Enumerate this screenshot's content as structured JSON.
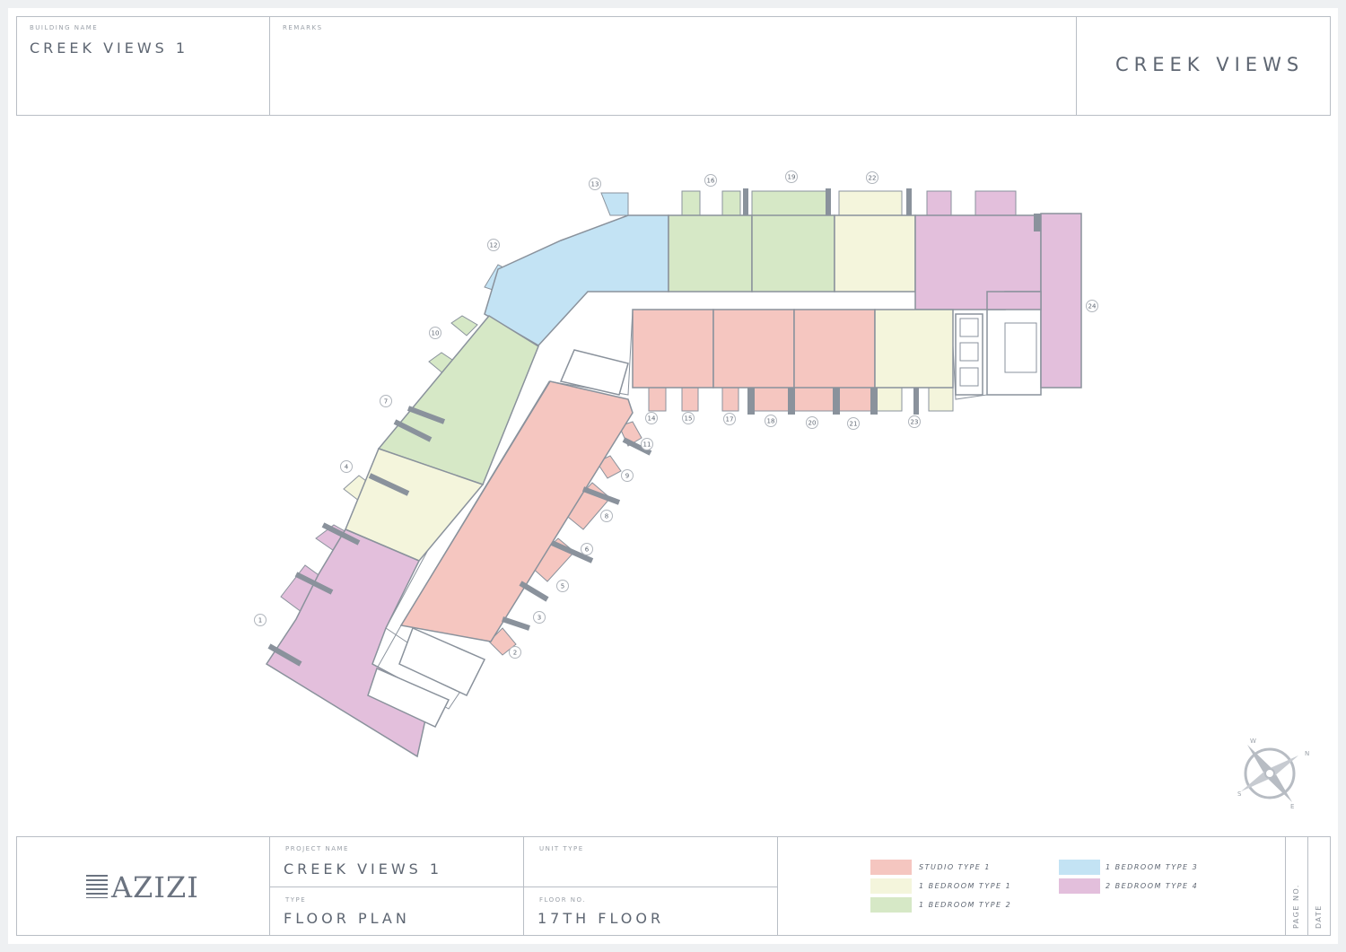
{
  "header": {
    "building_name_label": "BUILDING NAME",
    "building_name": "CREEK VIEWS 1",
    "remarks_label": "REMARKS",
    "remarks": "",
    "brand_title": "CREEK VIEWS"
  },
  "footer": {
    "logo_text": "AZIZI",
    "project_name_label": "PROJECT NAME",
    "project_name": "CREEK VIEWS 1",
    "unit_type_label": "UNIT TYPE",
    "unit_type": "",
    "type_label": "TYPE",
    "type": "FLOOR PLAN",
    "floor_no_label": "FLOOR NO.",
    "floor_no": "17TH FLOOR",
    "page_no_label": "PAGE NO.",
    "date_label": "DATE"
  },
  "legend": [
    {
      "key": "studio1",
      "label": "STUDIO TYPE 1",
      "color": "#f5c6c0"
    },
    {
      "key": "br1",
      "label": "1 BEDROOM TYPE 1",
      "color": "#f4f5dc"
    },
    {
      "key": "br2",
      "label": "1 BEDROOM TYPE 2",
      "color": "#d6e8c6"
    },
    {
      "key": "br3",
      "label": "1 BEDROOM TYPE 3",
      "color": "#c3e3f4"
    },
    {
      "key": "br4",
      "label": "2 BEDROOM TYPE 4",
      "color": "#e3bfdc"
    }
  ],
  "compass": {
    "n": "N",
    "e": "E",
    "s": "S",
    "w": "W",
    "icon": "compass-rose-icon"
  },
  "units": [
    {
      "number": "1",
      "type": "br4"
    },
    {
      "number": "2",
      "type": "studio1"
    },
    {
      "number": "3",
      "type": "studio1"
    },
    {
      "number": "4",
      "type": "br1"
    },
    {
      "number": "5",
      "type": "studio1"
    },
    {
      "number": "6",
      "type": "studio1"
    },
    {
      "number": "7",
      "type": "br2"
    },
    {
      "number": "8",
      "type": "studio1"
    },
    {
      "number": "9",
      "type": "studio1"
    },
    {
      "number": "10",
      "type": "br2"
    },
    {
      "number": "11",
      "type": "studio1"
    },
    {
      "number": "12",
      "type": "br3"
    },
    {
      "number": "13",
      "type": "br3"
    },
    {
      "number": "14",
      "type": "studio1"
    },
    {
      "number": "15",
      "type": "studio1"
    },
    {
      "number": "16",
      "type": "br2"
    },
    {
      "number": "17",
      "type": "studio1"
    },
    {
      "number": "18",
      "type": "studio1"
    },
    {
      "number": "19",
      "type": "br2"
    },
    {
      "number": "20",
      "type": "studio1"
    },
    {
      "number": "21",
      "type": "studio1"
    },
    {
      "number": "22",
      "type": "br1"
    },
    {
      "number": "23",
      "type": "br1"
    },
    {
      "number": "24",
      "type": "br4"
    }
  ]
}
